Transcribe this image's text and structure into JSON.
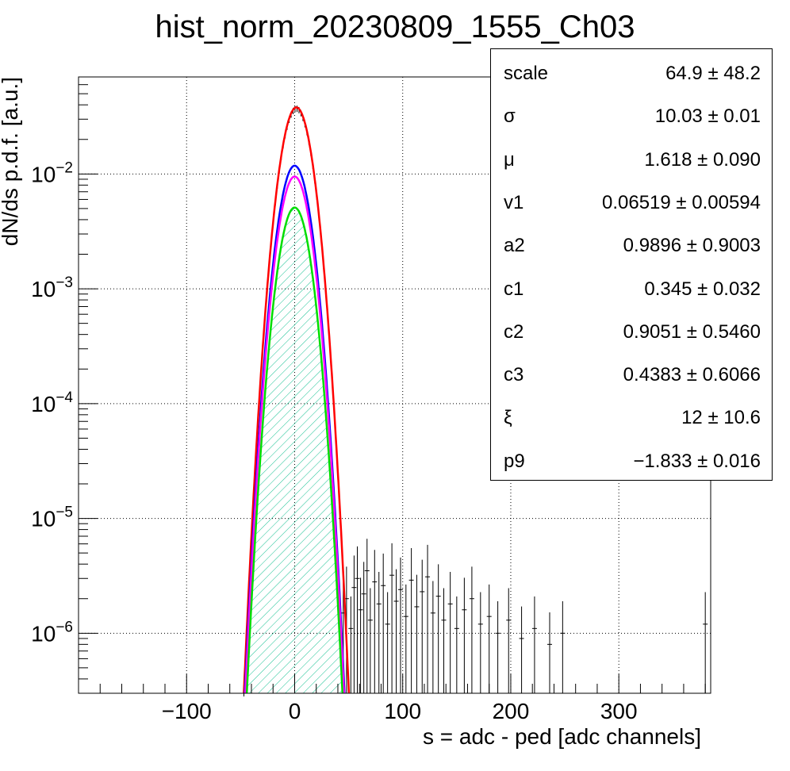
{
  "title": "hist_norm_20230809_1555_Ch03",
  "chart_data": {
    "type": "histogram",
    "title": "hist_norm_20230809_1555_Ch03",
    "xlabel": "s = adc - ped [adc channels]",
    "ylabel": "dN/ds p.d.f. [a.u.]",
    "xlim": [
      -200,
      385
    ],
    "ylim": [
      3e-07,
      0.07
    ],
    "yscale": "log",
    "grid": true,
    "x_ticks": [
      -100,
      0,
      100,
      200,
      300
    ],
    "x_tick_labels": [
      "−100",
      "0",
      "100",
      "200",
      "300"
    ],
    "y_ticks": [
      1e-06,
      1e-05,
      0.0001,
      0.001,
      0.01
    ],
    "y_tick_labels": [
      {
        "base": "10",
        "exp": "−6"
      },
      {
        "base": "10",
        "exp": "−5"
      },
      {
        "base": "10",
        "exp": "−4"
      },
      {
        "base": "10",
        "exp": "−3"
      },
      {
        "base": "10",
        "exp": "−2"
      }
    ],
    "series": [
      {
        "role": "data",
        "color": "#000000",
        "peak_x": 1.6,
        "peak_y": 0.037,
        "sigma": 10.03
      },
      {
        "role": "fit_total",
        "color": "#ff0000",
        "peak_x": 1.6,
        "peak_y": 0.038,
        "sigma": 10.03
      },
      {
        "role": "component",
        "color": "#0000ff",
        "peak_x": 0,
        "peak_y": 0.0118,
        "sigma": 10.03
      },
      {
        "role": "component",
        "color": "#ff00ff",
        "peak_x": 0,
        "peak_y": 0.0095,
        "sigma": 10.03
      },
      {
        "role": "component",
        "color": "#00dd00",
        "peak_x": 0,
        "peak_y": 0.0051,
        "sigma": 10.03,
        "fill": "hatched"
      }
    ],
    "tail_points": [
      {
        "x": 45,
        "y": 1.5e-06
      },
      {
        "x": 48,
        "y": 2e-06
      },
      {
        "x": 52,
        "y": 1.1e-06
      },
      {
        "x": 55,
        "y": 2.5e-06
      },
      {
        "x": 58,
        "y": 3e-06
      },
      {
        "x": 61,
        "y": 1.6e-06
      },
      {
        "x": 64,
        "y": 2.2e-06
      },
      {
        "x": 67,
        "y": 3.5e-06
      },
      {
        "x": 70,
        "y": 1.3e-06
      },
      {
        "x": 74,
        "y": 2.8e-06
      },
      {
        "x": 78,
        "y": 1.8e-06
      },
      {
        "x": 82,
        "y": 2.6e-06
      },
      {
        "x": 86,
        "y": 1.2e-06
      },
      {
        "x": 90,
        "y": 3.2e-06
      },
      {
        "x": 94,
        "y": 1.9e-06
      },
      {
        "x": 98,
        "y": 2.4e-06
      },
      {
        "x": 103,
        "y": 1.4e-06
      },
      {
        "x": 108,
        "y": 2.9e-06
      },
      {
        "x": 113,
        "y": 1.7e-06
      },
      {
        "x": 118,
        "y": 2.3e-06
      },
      {
        "x": 123,
        "y": 3.1e-06
      },
      {
        "x": 128,
        "y": 1.5e-06
      },
      {
        "x": 133,
        "y": 2.1e-06
      },
      {
        "x": 138,
        "y": 1.3e-06
      },
      {
        "x": 144,
        "y": 1.8e-06
      },
      {
        "x": 150,
        "y": 1.1e-06
      },
      {
        "x": 157,
        "y": 1.6e-06
      },
      {
        "x": 164,
        "y": 2e-06
      },
      {
        "x": 172,
        "y": 1.2e-06
      },
      {
        "x": 180,
        "y": 1.4e-06
      },
      {
        "x": 188,
        "y": 1e-06
      },
      {
        "x": 198,
        "y": 1.3e-06
      },
      {
        "x": 210,
        "y": 9e-07
      },
      {
        "x": 222,
        "y": 1.1e-06
      },
      {
        "x": 236,
        "y": 8e-07
      },
      {
        "x": 248,
        "y": 1e-06
      },
      {
        "x": 380,
        "y": 1.2e-06
      }
    ]
  },
  "stats": [
    {
      "name": "scale",
      "value": "64.9 ± 48.2"
    },
    {
      "name": "σ",
      "value": "10.03 ± 0.01"
    },
    {
      "name": "μ",
      "value": "1.618 ± 0.090"
    },
    {
      "name": "v1",
      "value": "0.06519 ± 0.00594"
    },
    {
      "name": "a2",
      "value": "0.9896 ± 0.9003"
    },
    {
      "name": "c1",
      "value": "0.345 ± 0.032"
    },
    {
      "name": "c2",
      "value": "0.9051 ± 0.5460"
    },
    {
      "name": "c3",
      "value": "0.4383 ± 0.6066"
    },
    {
      "name": "ξ",
      "value": "12 ± 10.6"
    },
    {
      "name": "p9",
      "value": "−1.833 ± 0.016"
    }
  ]
}
